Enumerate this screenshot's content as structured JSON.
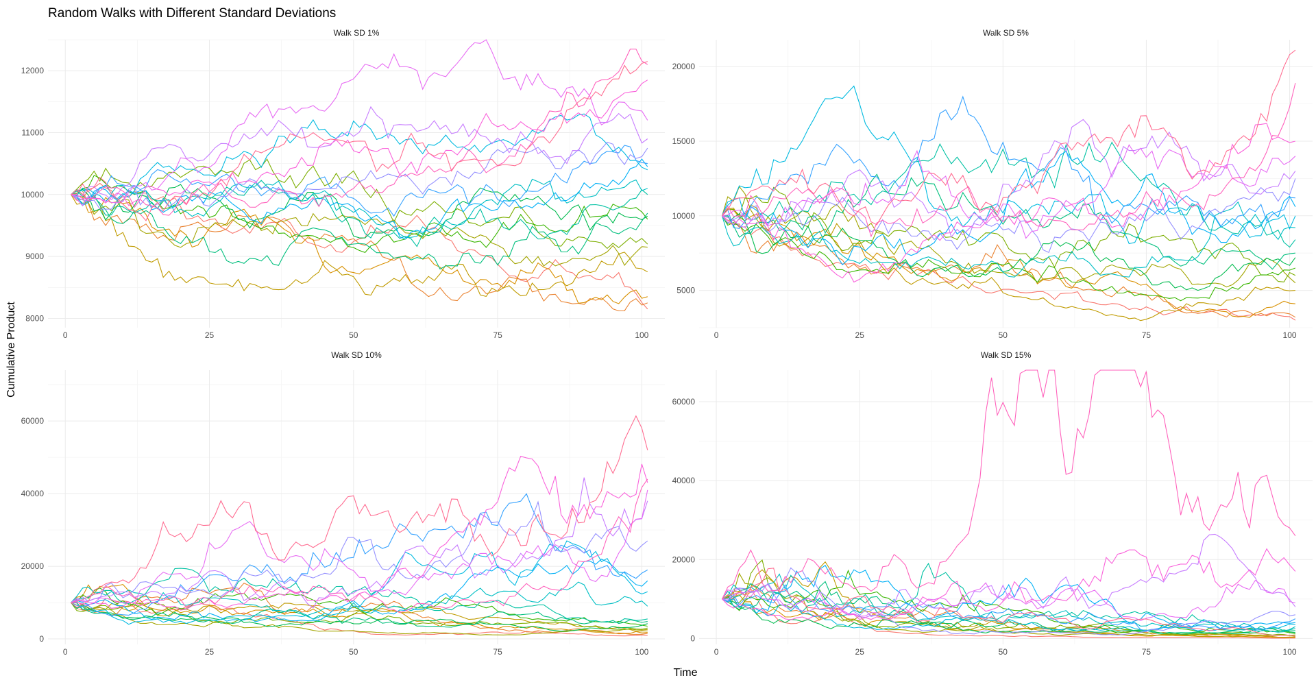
{
  "chart_data": {
    "type": "line",
    "title": "Random Walks with Different Standard Deviations",
    "xlabel": "Time",
    "ylabel": "Cumulative Product",
    "legend": "none",
    "grid": true,
    "n_series_per_panel": 20,
    "palette": [
      "#F8766D",
      "#EA8331",
      "#D89000",
      "#C09B00",
      "#A3A500",
      "#7CAE00",
      "#39B600",
      "#00BB4E",
      "#00BF7D",
      "#00C1A3",
      "#00BFC4",
      "#00BAE0",
      "#00B0F6",
      "#35A2FF",
      "#9590FF",
      "#C77CFF",
      "#E76BF3",
      "#FA62DB",
      "#FF62BC",
      "#FF6C91"
    ],
    "panels": [
      {
        "title": "Walk SD 1%",
        "sd": 0.01,
        "xlim": [
          -3,
          104
        ],
        "ylim": [
          7850,
          12500
        ],
        "xticks": [
          0,
          25,
          50,
          75,
          100
        ],
        "xtick_labels": [
          "0",
          "25",
          "50",
          "75",
          "100"
        ],
        "yticks": [
          8000,
          9000,
          10000,
          11000,
          12000
        ],
        "ytick_labels": [
          "8000",
          "9000",
          "10000",
          "11000",
          "12000"
        ],
        "endpoints": [
          8150,
          8250,
          8350,
          8750,
          9150,
          9200,
          9600,
          9650,
          9700,
          10000,
          10100,
          10400,
          10450,
          10500,
          10750,
          10900,
          11200,
          11850,
          12100,
          12150
        ]
      },
      {
        "title": "Walk SD 5%",
        "sd": 0.05,
        "xlim": [
          -3,
          104
        ],
        "ylim": [
          2500,
          21800
        ],
        "xticks": [
          0,
          25,
          50,
          75,
          100
        ],
        "xtick_labels": [
          "0",
          "25",
          "50",
          "75",
          "100"
        ],
        "yticks": [
          5000,
          10000,
          15000,
          20000
        ],
        "ytick_labels": [
          "5000",
          "10000",
          "15000",
          "20000"
        ],
        "endpoints": [
          3000,
          3200,
          4100,
          5000,
          5500,
          6000,
          6500,
          7200,
          7500,
          8400,
          9200,
          10000,
          10600,
          11200,
          12500,
          13000,
          14000,
          15000,
          18900,
          21100
        ]
      },
      {
        "title": "Walk SD 10%",
        "sd": 0.1,
        "xlim": [
          -3,
          104
        ],
        "ylim": [
          -1500,
          74000
        ],
        "xticks": [
          0,
          25,
          50,
          75,
          100
        ],
        "xtick_labels": [
          "0",
          "25",
          "50",
          "75",
          "100"
        ],
        "yticks": [
          0,
          20000,
          40000,
          60000
        ],
        "ytick_labels": [
          "0",
          "20000",
          "40000",
          "60000"
        ],
        "endpoints": [
          1000,
          1500,
          1800,
          2200,
          2600,
          3000,
          3500,
          4200,
          4800,
          5500,
          9000,
          13000,
          16000,
          19000,
          27000,
          38000,
          41000,
          43000,
          44000,
          52000
        ]
      },
      {
        "title": "Walk SD 15%",
        "sd": 0.15,
        "xlim": [
          -3,
          104
        ],
        "ylim": [
          -1500,
          68000
        ],
        "xticks": [
          0,
          25,
          50,
          75,
          100
        ],
        "xtick_labels": [
          "0",
          "25",
          "50",
          "75",
          "100"
        ],
        "yticks": [
          0,
          20000,
          40000,
          60000
        ],
        "ytick_labels": [
          "0",
          "20000",
          "40000",
          "60000"
        ],
        "endpoints": [
          100,
          200,
          300,
          400,
          600,
          900,
          1200,
          1500,
          2000,
          2500,
          3000,
          3500,
          4000,
          5000,
          6000,
          8000,
          9000,
          17000,
          26000,
          600
        ]
      }
    ]
  }
}
